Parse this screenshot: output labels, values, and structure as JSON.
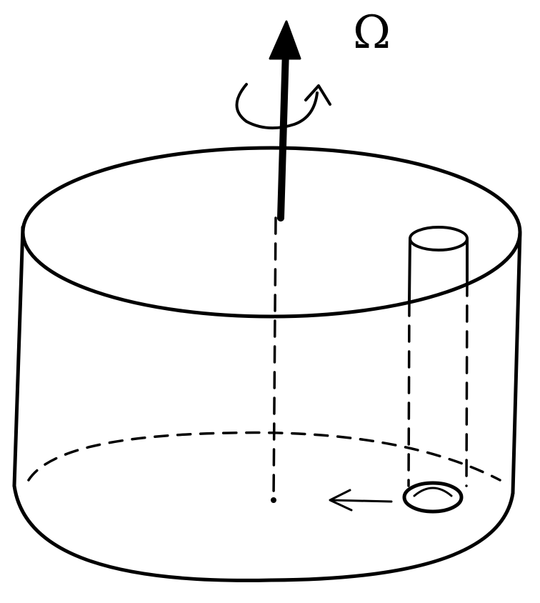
{
  "labels": {
    "rotation_symbol": "Ω"
  },
  "colors": {
    "ink": "#000000",
    "background": "#ffffff"
  }
}
